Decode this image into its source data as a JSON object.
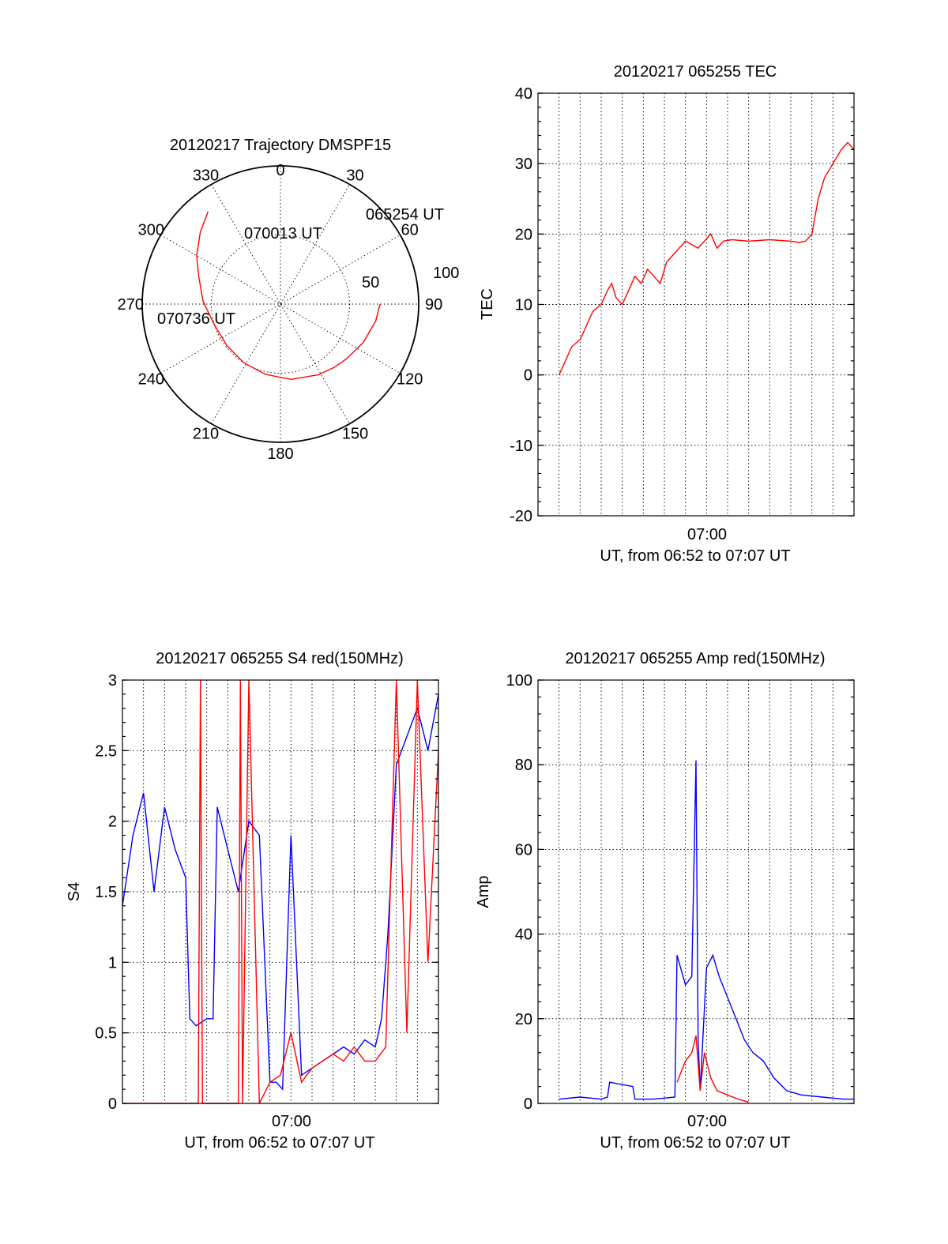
{
  "chart_data": [
    {
      "type": "polar",
      "title": "20120217 Trajectory DMSPF15",
      "azimuth_labels": [
        "0",
        "30",
        "60",
        "90",
        "120",
        "150",
        "180",
        "210",
        "240",
        "270",
        "300",
        "330"
      ],
      "radial_labels": [
        "50",
        "100"
      ],
      "track": [
        [
          72,
          90
        ],
        [
          70,
          100
        ],
        [
          66,
          115
        ],
        [
          62,
          130
        ],
        [
          60,
          140
        ],
        [
          58,
          152
        ],
        [
          55,
          172
        ],
        [
          52,
          192
        ],
        [
          50,
          212
        ],
        [
          49,
          232
        ],
        [
          50,
          252
        ],
        [
          56,
          272
        ],
        [
          62,
          288
        ],
        [
          70,
          300
        ],
        [
          78,
          312
        ],
        [
          85,
          322
        ]
      ],
      "time_labels": [
        "065254 UT",
        "070013 UT",
        "070736 UT"
      ],
      "track_color": "#ff0000"
    },
    {
      "type": "line",
      "title": "20120217 065255 TEC",
      "ylabel": "TEC",
      "xlabel": "UT, from 06:52 to 07:07 UT",
      "xtick_label": "07:00",
      "xlim": [
        0,
        15
      ],
      "ylim": [
        -20,
        40
      ],
      "yticks": [
        "40",
        "30",
        "20",
        "10",
        "0",
        "-10",
        "-20"
      ],
      "series": [
        {
          "color": "#ff0000",
          "x": [
            1.0,
            1.3,
            1.6,
            2.0,
            2.3,
            2.6,
            3.0,
            3.3,
            3.5,
            3.7,
            4.0,
            4.3,
            4.6,
            4.9,
            5.2,
            5.5,
            5.8,
            6.1,
            6.4,
            6.7,
            7.0,
            7.3,
            7.6,
            7.9,
            8.2,
            8.5,
            8.8,
            9.2,
            10.0,
            11.0,
            12.0,
            12.4,
            12.7,
            13.0,
            13.3,
            13.6,
            14.0,
            14.4,
            14.7,
            15.0
          ],
          "values": [
            0,
            2,
            4,
            5,
            7,
            9,
            10,
            12,
            13,
            11,
            10,
            12,
            14,
            13,
            15,
            14,
            13,
            16,
            17,
            18,
            19,
            18.5,
            18,
            19,
            20,
            18,
            19,
            19.2,
            19,
            19.2,
            19,
            18.8,
            19,
            20,
            25,
            28,
            30,
            32,
            33,
            32
          ]
        }
      ]
    },
    {
      "type": "line",
      "title": "20120217 065255 S4 red(150MHz)",
      "ylabel": "S4",
      "xlabel": "UT, from 06:52 to 07:07 UT",
      "xtick_label": "07:00",
      "xlim": [
        0,
        15
      ],
      "ylim": [
        0,
        3
      ],
      "yticks": [
        "3",
        "2.5",
        "2",
        "1.5",
        "1",
        "0.5",
        "0"
      ],
      "series": [
        {
          "color": "#0000ff",
          "x": [
            0,
            0.5,
            1.0,
            1.5,
            2.0,
            2.5,
            3.0,
            3.2,
            3.5,
            4.0,
            4.3,
            4.5,
            5.0,
            5.5,
            6.0,
            6.5,
            7.0,
            7.3,
            7.6,
            8.0,
            8.5,
            9.0,
            9.5,
            10.0,
            10.5,
            11.0,
            11.5,
            12.0,
            12.3,
            12.6,
            13.0,
            13.5,
            14.0,
            14.5,
            15.0
          ],
          "values": [
            1.4,
            1.9,
            2.2,
            1.5,
            2.1,
            1.8,
            1.6,
            0.6,
            0.55,
            0.6,
            0.6,
            2.1,
            1.8,
            1.5,
            2.0,
            1.9,
            0.15,
            0.15,
            0.1,
            1.9,
            0.2,
            0.25,
            0.3,
            0.35,
            0.4,
            0.35,
            0.45,
            0.4,
            0.6,
            1.2,
            2.4,
            2.6,
            2.8,
            2.5,
            2.9
          ]
        },
        {
          "color": "#ff0000",
          "x": [
            0,
            1,
            2,
            3,
            3.6,
            3.7,
            3.8,
            4,
            5,
            5.5,
            5.6,
            5.7,
            6,
            6.5,
            7,
            7.5,
            8,
            8.5,
            9,
            9.5,
            10,
            10.5,
            11,
            11.5,
            12,
            12.5,
            13,
            13.5,
            14,
            14.5,
            15
          ],
          "values": [
            0,
            0,
            0,
            0,
            0,
            3,
            0,
            0,
            0,
            0,
            3,
            0,
            3,
            0,
            0.15,
            0.2,
            0.5,
            0.15,
            0.25,
            0.3,
            0.35,
            0.3,
            0.4,
            0.3,
            0.3,
            0.4,
            3,
            0.5,
            3,
            1,
            2.5
          ]
        }
      ]
    },
    {
      "type": "line",
      "title": "20120217 065255 Amp red(150MHz)",
      "ylabel": "Amp",
      "xlabel": "UT, from 06:52 to 07:07 UT",
      "xtick_label": "07:00",
      "xlim": [
        0,
        15
      ],
      "ylim": [
        0,
        100
      ],
      "yticks": [
        "100",
        "80",
        "60",
        "40",
        "20",
        "0"
      ],
      "series": [
        {
          "color": "#0000ff",
          "x": [
            1.0,
            2.0,
            3.0,
            3.3,
            3.4,
            4.5,
            4.6,
            5.5,
            6.5,
            6.6,
            7.0,
            7.3,
            7.5,
            7.6,
            7.7,
            8.0,
            8.3,
            8.6,
            9.0,
            9.4,
            9.8,
            10.2,
            10.7,
            11.2,
            11.8,
            12.5,
            13.5,
            14.5,
            15.0
          ],
          "values": [
            1,
            1.5,
            1,
            1.5,
            5,
            4,
            1,
            1,
            1.5,
            35,
            28,
            30,
            81,
            15,
            3,
            32,
            35,
            30,
            25,
            20,
            15,
            12,
            10,
            6,
            3,
            2,
            1.5,
            1,
            1
          ]
        },
        {
          "color": "#ff0000",
          "x": [
            6.6,
            7.0,
            7.3,
            7.5,
            7.7,
            7.9,
            8.2,
            8.5,
            9.0,
            9.5,
            10.0
          ],
          "values": [
            5,
            10,
            12,
            16,
            3,
            12,
            6,
            3,
            2,
            1,
            0.3
          ]
        }
      ]
    }
  ]
}
